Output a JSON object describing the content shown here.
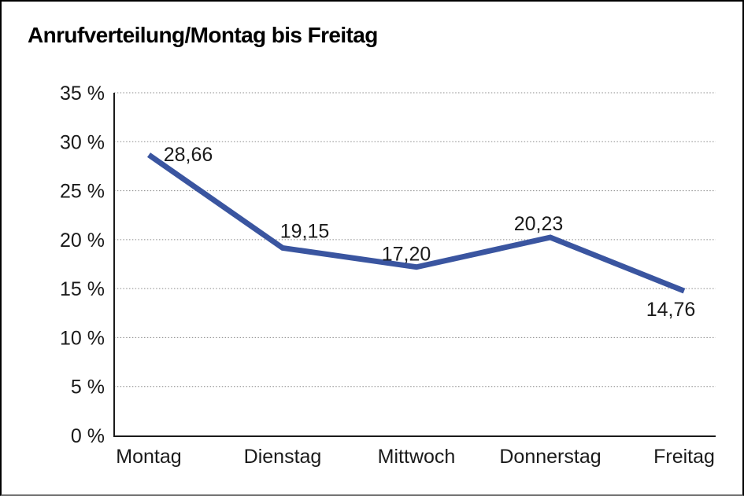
{
  "title": "Anrufverteilung/Montag bis Freitag",
  "colors": {
    "line": "#3a55a0",
    "grid": "#8a8a8a",
    "axis": "#1a1a1a",
    "text": "#1a1a1a",
    "background": "#ffffff",
    "frame": "#000000",
    "frame_bottom": "#6e6e6e"
  },
  "chart_data": {
    "type": "line",
    "title": "Anrufverteilung/Montag bis Freitag",
    "categories": [
      "Montag",
      "Dienstag",
      "Mittwoch",
      "Donnerstag",
      "Freitag"
    ],
    "values": [
      28.66,
      19.15,
      17.2,
      20.23,
      14.76
    ],
    "point_labels": [
      "28,66",
      "19,15",
      "17,20",
      "20,23",
      "14,76"
    ],
    "y_ticks": [
      0,
      5,
      10,
      15,
      20,
      25,
      30,
      35
    ],
    "y_tick_labels": [
      "0 %",
      "5 %",
      "10 %",
      "15 %",
      "20 %",
      "25 %",
      "30 %",
      "35 %"
    ],
    "ylim": [
      0,
      35
    ],
    "xlabel": "",
    "ylabel": "",
    "grid": "horizontal-dotted",
    "legend": "none",
    "line_color": "#3a55a0",
    "markers": "none"
  }
}
